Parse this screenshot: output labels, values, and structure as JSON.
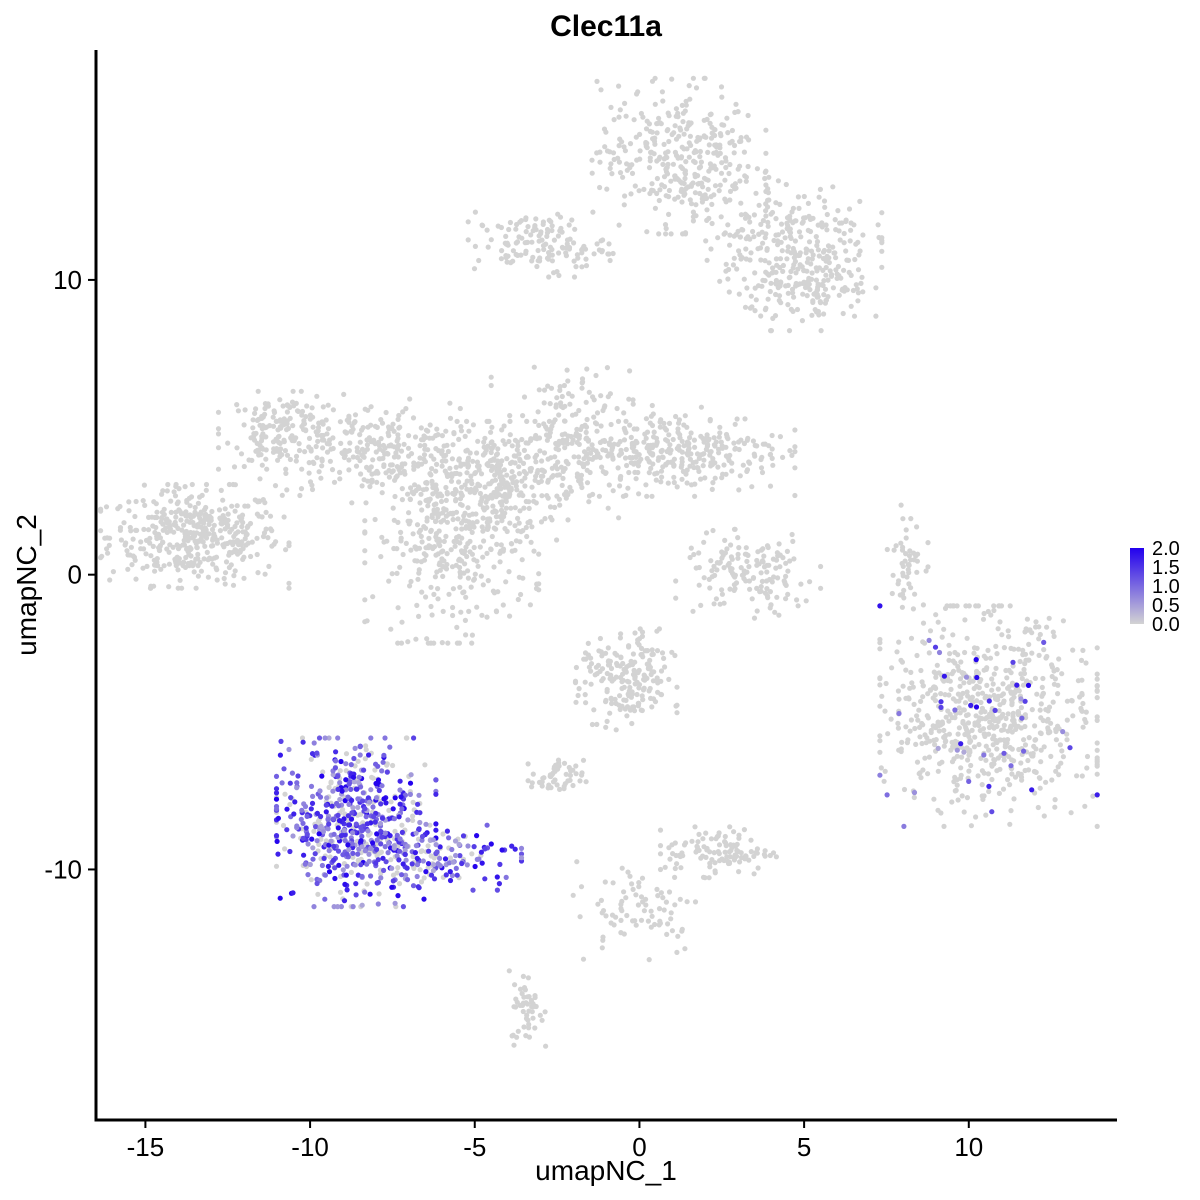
{
  "chart_data": {
    "type": "scatter",
    "title": "Clec11a",
    "xlabel": "umapNC_1",
    "ylabel": "umapNC_2",
    "xlim": [
      -16.5,
      14.5
    ],
    "ylim": [
      -18.5,
      17.8
    ],
    "x_ticks": [
      -15,
      -10,
      -5,
      0,
      5,
      10
    ],
    "x_tick_labels": [
      "-15",
      "-10",
      "-5",
      "0",
      "5",
      "10"
    ],
    "y_ticks": [
      -10,
      0,
      10
    ],
    "y_tick_labels": [
      "-10",
      "0",
      "10"
    ],
    "grid": false,
    "legend_placement": "right",
    "color_scale": {
      "low_color": "#d3d3d3",
      "high_color": "#2200ee",
      "min": 0,
      "max": 2,
      "tick_labels": [
        "2.0",
        "1.5",
        "1.0",
        "0.5",
        "0.0"
      ],
      "tick_values": [
        2.0,
        1.5,
        1.0,
        0.5,
        0.0
      ]
    },
    "clusters": [
      {
        "cx": -13.5,
        "cy": 1.3,
        "sx": 1.3,
        "sy": 0.8,
        "n": 420,
        "expr": 0
      },
      {
        "cx": -10.8,
        "cy": 4.9,
        "sx": 0.9,
        "sy": 0.6,
        "n": 160,
        "expr": 0
      },
      {
        "cx": -8.0,
        "cy": 4.2,
        "sx": 1.6,
        "sy": 0.8,
        "n": 260,
        "expr": 0
      },
      {
        "cx": -5.7,
        "cy": 1.2,
        "sx": 1.2,
        "sy": 1.6,
        "n": 380,
        "expr": 0
      },
      {
        "cx": -4.2,
        "cy": 3.0,
        "sx": 0.9,
        "sy": 1.0,
        "n": 220,
        "expr": 0
      },
      {
        "cx": -2.3,
        "cy": 4.5,
        "sx": 1.0,
        "sy": 1.2,
        "n": 220,
        "expr": 0
      },
      {
        "cx": 1.2,
        "cy": 4.2,
        "sx": 1.6,
        "sy": 0.7,
        "n": 320,
        "expr": 0
      },
      {
        "cx": -3.0,
        "cy": 11.2,
        "sx": 1.0,
        "sy": 0.5,
        "n": 140,
        "expr": 0
      },
      {
        "cx": 1.2,
        "cy": 14.2,
        "sx": 1.2,
        "sy": 1.2,
        "n": 340,
        "expr": 0
      },
      {
        "cx": 4.5,
        "cy": 11.5,
        "sx": 1.3,
        "sy": 0.9,
        "n": 240,
        "expr": 0
      },
      {
        "cx": 5.2,
        "cy": 9.6,
        "sx": 0.9,
        "sy": 0.6,
        "n": 140,
        "expr": 0
      },
      {
        "cx": 3.3,
        "cy": 0.0,
        "sx": 1.0,
        "sy": 0.7,
        "n": 150,
        "expr": 0
      },
      {
        "cx": 8.1,
        "cy": 0.6,
        "sx": 0.3,
        "sy": 0.8,
        "n": 50,
        "expr": 0
      },
      {
        "cx": 10.6,
        "cy": -4.8,
        "sx": 1.5,
        "sy": 1.7,
        "n": 720,
        "expr": 0.06
      },
      {
        "cx": -0.4,
        "cy": -3.6,
        "sx": 0.7,
        "sy": 0.8,
        "n": 200,
        "expr": 0
      },
      {
        "cx": -2.5,
        "cy": -6.9,
        "sx": 0.4,
        "sy": 0.3,
        "n": 50,
        "expr": 0
      },
      {
        "cx": 2.4,
        "cy": -9.4,
        "sx": 0.8,
        "sy": 0.4,
        "n": 110,
        "expr": 0
      },
      {
        "cx": 0.0,
        "cy": -11.3,
        "sx": 1.0,
        "sy": 0.8,
        "n": 80,
        "expr": 0
      },
      {
        "cx": -3.4,
        "cy": -14.7,
        "sx": 0.25,
        "sy": 0.6,
        "n": 50,
        "expr": 0
      },
      {
        "cx": -8.6,
        "cy": -8.4,
        "sx": 1.1,
        "sy": 1.3,
        "n": 620,
        "expr": 0.75
      },
      {
        "cx": -6.0,
        "cy": -9.6,
        "sx": 1.1,
        "sy": 0.5,
        "n": 140,
        "expr": 0.7
      }
    ]
  }
}
